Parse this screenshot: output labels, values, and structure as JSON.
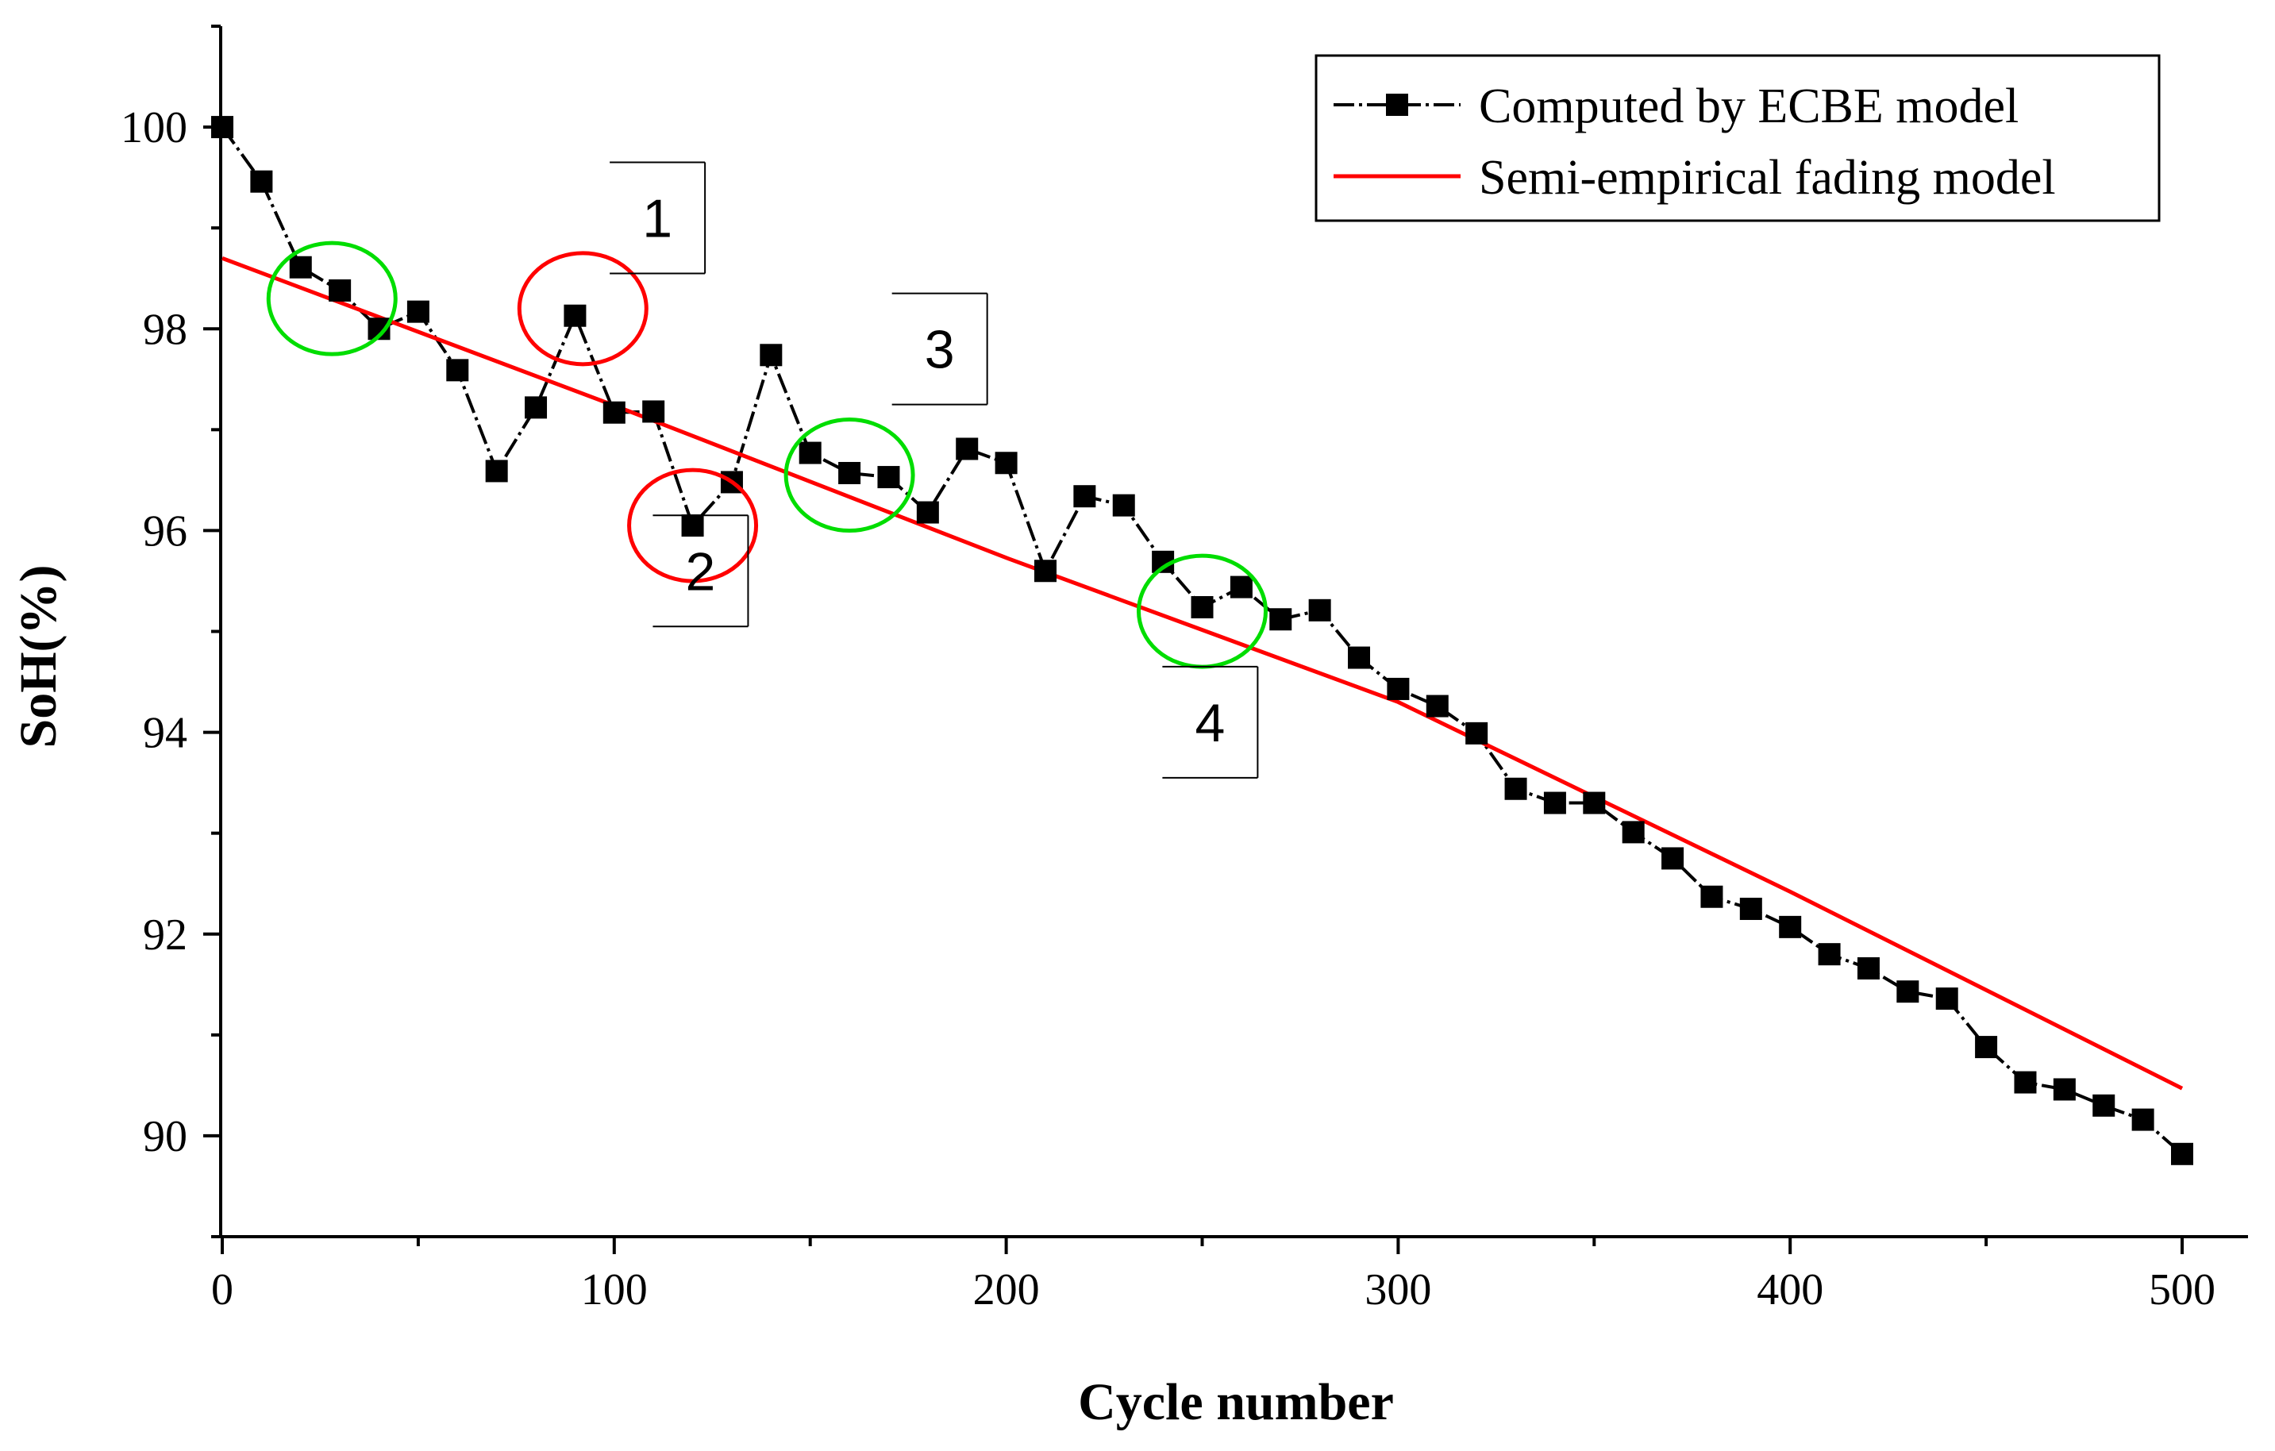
{
  "chart_data": {
    "type": "line",
    "xlabel": "Cycle number",
    "ylabel": "SoH(%)",
    "xlim": [
      0,
      510
    ],
    "ylim": [
      89,
      101
    ],
    "xticks": [
      0,
      100,
      200,
      300,
      400,
      500
    ],
    "xtick_labels": [
      "0",
      "100",
      "200",
      "300",
      "400",
      "500"
    ],
    "yticks": [
      90,
      92,
      94,
      96,
      98,
      100
    ],
    "ytick_labels": [
      "90",
      "92",
      "94",
      "96",
      "98",
      "100"
    ],
    "grid": false,
    "legend_position": "top-right",
    "series": [
      {
        "name": "Computed by ECBE model",
        "color": "#000000",
        "marker": "square",
        "x": [
          0,
          10,
          20,
          30,
          40,
          50,
          60,
          70,
          80,
          90,
          100,
          110,
          120,
          130,
          140,
          150,
          160,
          170,
          180,
          190,
          200,
          210,
          220,
          230,
          240,
          250,
          260,
          270,
          280,
          290,
          300,
          310,
          320,
          330,
          340,
          350,
          360,
          370,
          380,
          390,
          400,
          410,
          420,
          430,
          440,
          450,
          460,
          470,
          480,
          490,
          500
        ],
        "y": [
          100.0,
          99.46,
          98.61,
          98.38,
          98.0,
          98.17,
          97.59,
          96.59,
          97.22,
          98.13,
          97.17,
          97.18,
          96.05,
          96.48,
          97.74,
          96.77,
          96.57,
          96.53,
          96.18,
          96.81,
          96.67,
          95.6,
          96.34,
          96.25,
          95.69,
          95.24,
          95.44,
          95.12,
          95.21,
          94.74,
          94.43,
          94.26,
          93.99,
          93.44,
          93.3,
          93.3,
          93.01,
          92.75,
          92.37,
          92.25,
          92.07,
          91.8,
          91.66,
          91.43,
          91.36,
          90.88,
          90.53,
          90.46,
          90.3,
          90.16,
          89.82
        ]
      },
      {
        "name": "Semi-empirical fading model",
        "color": "#ff0000",
        "x": [
          0,
          100,
          200,
          300,
          400,
          500
        ],
        "y": [
          98.7,
          97.24,
          95.73,
          94.3,
          92.42,
          90.47
        ]
      }
    ],
    "annotations": [
      {
        "label": "1",
        "x": 111,
        "y": 99.1
      },
      {
        "label": "2",
        "x": 122,
        "y": 95.6
      },
      {
        "label": "3",
        "x": 183,
        "y": 97.8
      },
      {
        "label": "4",
        "x": 252,
        "y": 94.1
      }
    ],
    "circles": [
      {
        "x": 28,
        "y": 98.3,
        "color": "#00dd00"
      },
      {
        "x": 92,
        "y": 98.2,
        "color": "#ff0000"
      },
      {
        "x": 120,
        "y": 96.05,
        "color": "#ff0000"
      },
      {
        "x": 160,
        "y": 96.55,
        "color": "#00dd00"
      },
      {
        "x": 250,
        "y": 95.2,
        "color": "#00dd00"
      }
    ]
  }
}
